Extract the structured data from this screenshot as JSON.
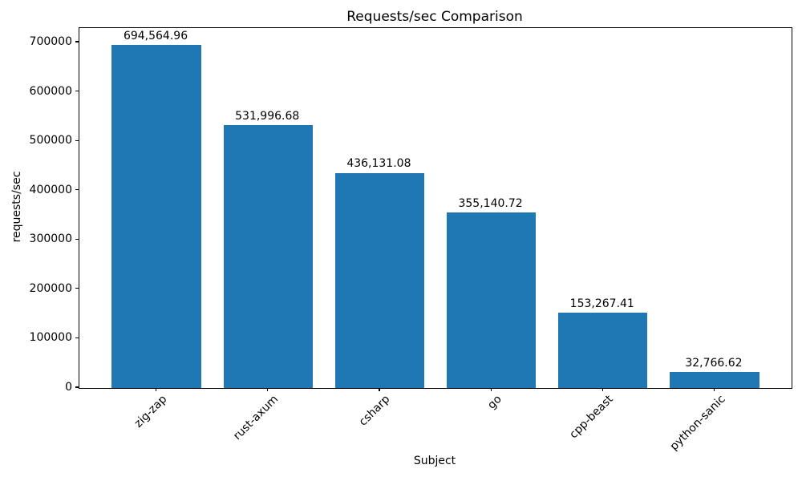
{
  "chart_data": {
    "type": "bar",
    "title": "Requests/sec Comparison",
    "xlabel": "Subject",
    "ylabel": "requests/sec",
    "categories": [
      "zig-zap",
      "rust-axum",
      "csharp",
      "go",
      "cpp-beast",
      "python-sanic"
    ],
    "values": [
      694564.96,
      531996.68,
      436131.08,
      355140.72,
      153267.41,
      32766.62
    ],
    "value_labels": [
      "694,564.96",
      "531,996.68",
      "436,131.08",
      "355,140.72",
      "153,267.41",
      "32,766.62"
    ],
    "yticks": [
      0,
      100000,
      200000,
      300000,
      400000,
      500000,
      600000,
      700000
    ],
    "ytick_labels": [
      "0",
      "100000",
      "200000",
      "300000",
      "400000",
      "500000",
      "600000",
      "700000"
    ],
    "ylim": [
      0,
      729293
    ],
    "bar_color": "#1f77b4",
    "axis_color": "#000000",
    "text_color": "#000000",
    "grid": false,
    "legend_position": "none",
    "x_tick_rotation": 45
  }
}
